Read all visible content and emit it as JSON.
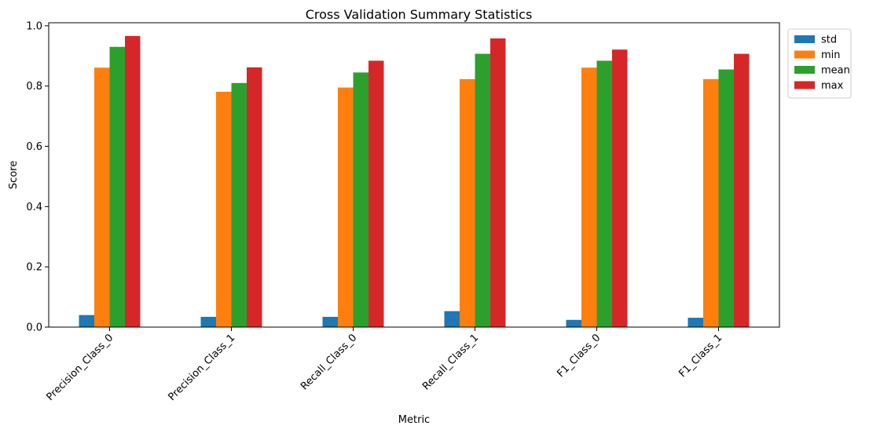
{
  "chart_data": {
    "type": "bar",
    "title": "Cross Validation Summary Statistics",
    "xlabel": "Metric",
    "ylabel": "Score",
    "ylim": [
      0,
      1.01
    ],
    "yticks": [
      0.0,
      0.2,
      0.4,
      0.6,
      0.8,
      1.0
    ],
    "ytick_labels": [
      "0.0",
      "0.2",
      "0.4",
      "0.6",
      "0.8",
      "1.0"
    ],
    "categories": [
      "Precision_Class_0",
      "Precision_Class_1",
      "Recall_Class_0",
      "Recall_Class_1",
      "F1_Class_0",
      "F1_Class_1"
    ],
    "grid": false,
    "legend_position": "outside-top-right",
    "series": [
      {
        "name": "std",
        "color": "#1f77b4",
        "values": [
          0.04,
          0.034,
          0.034,
          0.053,
          0.024,
          0.031
        ]
      },
      {
        "name": "min",
        "color": "#ff7f0e",
        "values": [
          0.861,
          0.781,
          0.795,
          0.823,
          0.861,
          0.823
        ]
      },
      {
        "name": "mean",
        "color": "#2ca02c",
        "values": [
          0.93,
          0.81,
          0.845,
          0.907,
          0.884,
          0.855
        ]
      },
      {
        "name": "max",
        "color": "#d62728",
        "values": [
          0.966,
          0.862,
          0.884,
          0.958,
          0.921,
          0.907
        ]
      }
    ]
  }
}
